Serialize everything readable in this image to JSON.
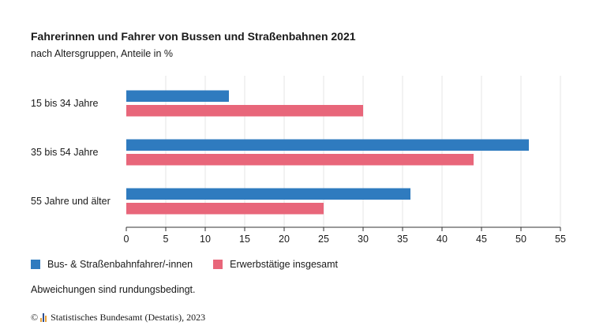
{
  "title": "Fahrerinnen und Fahrer von Bussen und Straßenbahnen 2021",
  "subtitle": "nach Altersgruppen, Anteile in %",
  "note": "Abweichungen sind rundungsbedingt.",
  "source": {
    "copyright_symbol": "©",
    "text": "Statistisches Bundesamt (Destatis), 2023",
    "logo_icon": "destatis-logo-icon"
  },
  "colors": {
    "series1": "#2f7bbf",
    "series2": "#e8667a",
    "grid": "#e6e6e6"
  },
  "chart_data": {
    "type": "bar",
    "orientation": "horizontal",
    "categories": [
      "15 bis 34 Jahre",
      "35 bis 54 Jahre",
      "55 Jahre und älter"
    ],
    "series": [
      {
        "name": "Bus- & Straßenbahnfahrer/-innen",
        "values": [
          13,
          51,
          36
        ]
      },
      {
        "name": "Erwerbstätige insgesamt",
        "values": [
          30,
          44,
          25
        ]
      }
    ],
    "xlim": [
      0,
      55
    ],
    "xticks": [
      0,
      5,
      10,
      15,
      20,
      25,
      30,
      35,
      40,
      45,
      50,
      55
    ],
    "grid": true,
    "legend_position": "bottom-left"
  }
}
